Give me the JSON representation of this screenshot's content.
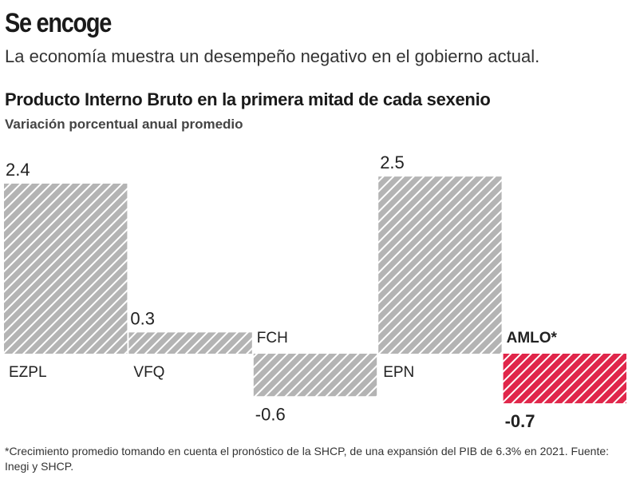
{
  "chart_data": {
    "type": "bar",
    "title": "Se encoge",
    "subtitle": "La economía muestra un desempeño negativo en el gobierno actual.",
    "chart_title": "Producto Interno Bruto en la primera mitad de cada sexenio",
    "y_label": "Variación porcentual anual promedio",
    "categories": [
      "EZPL",
      "VFQ",
      "FCH",
      "EPN",
      "AMLO*"
    ],
    "values": [
      2.4,
      0.3,
      -0.6,
      2.5,
      -0.7
    ],
    "colors": [
      "#b4b4b4",
      "#b4b4b4",
      "#b4b4b4",
      "#b4b4b4",
      "#e0264a"
    ],
    "note": "*Crecimiento promedio tomando en cuenta el pronóstico de la SHCP, de una expansión del PIB de 6.3% en 2021. Fuente: Inegi y SHCP."
  }
}
